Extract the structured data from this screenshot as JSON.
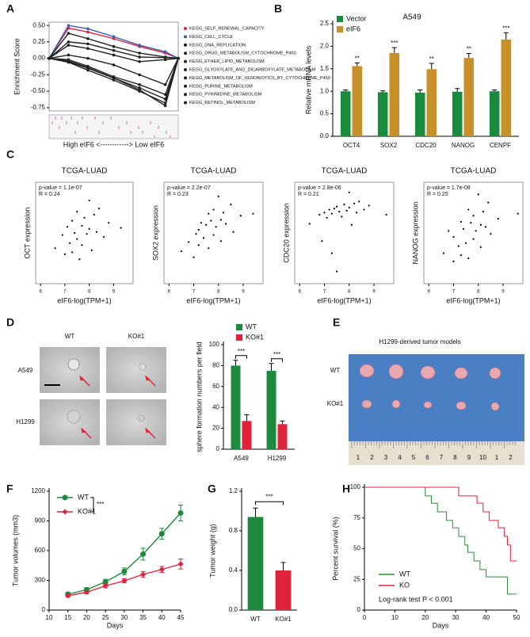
{
  "panel_labels": [
    "A",
    "B",
    "C",
    "D",
    "E",
    "F",
    "G",
    "H"
  ],
  "panel_d_images": {
    "columns": [
      "WT",
      "KO#1"
    ],
    "rows": [
      "A549",
      "H1299"
    ]
  },
  "panel_e_image": {
    "title": "H1299-derived tumor models",
    "rows": [
      "WT",
      "KO#1"
    ],
    "ruler": [
      1,
      2,
      3,
      4,
      5,
      6,
      7,
      8,
      9,
      10,
      1,
      2
    ]
  },
  "chart_data": [
    {
      "type": "line",
      "ylabel": "Enrichment Score",
      "xlabel": "High eIF6 <------------> Low eIF6",
      "box": true,
      "marker": "circle",
      "x": [
        0,
        15,
        30,
        50,
        70,
        90,
        100
      ],
      "xlim": [
        0,
        100
      ],
      "ylim": [
        -0.8,
        0.55
      ],
      "yticks": [
        {
          "value": -0.75,
          "label": "-0.75"
        },
        {
          "value": -0.5,
          "label": "-0.50"
        },
        -0.25,
        {
          "value": 0,
          "label": "0.00"
        },
        0.25,
        {
          "value": 0.5,
          "label": "0.50"
        }
      ],
      "series": [
        {
          "name": "KEGG_SELF_RENEWAL_CAPACITY",
          "color": "#d6204a",
          "values": [
            0,
            0.46,
            0.4,
            0.3,
            0.18,
            0.08,
            0
          ]
        },
        {
          "name": "KEGG_CELL_CYCLE",
          "color": "#3a5fa8",
          "values": [
            0,
            0.5,
            0.45,
            0.33,
            0.2,
            0.1,
            0
          ]
        },
        {
          "name": "KEGG_DNA_REPLICATION",
          "color": "#222222",
          "values": [
            0,
            0.38,
            0.3,
            0.18,
            0.08,
            0.02,
            0
          ]
        },
        {
          "name": "KEGG_DRUG_METABOLISM_CYTOCHROME_P450",
          "color": "#222222",
          "values": [
            0,
            -0.05,
            -0.15,
            -0.3,
            -0.45,
            -0.62,
            0
          ]
        },
        {
          "name": "KEGG_ETHER_LIPID_METABOLISM",
          "color": "#222222",
          "values": [
            0,
            0.05,
            0,
            -0.1,
            -0.25,
            -0.4,
            0
          ]
        },
        {
          "name": "KEGG_GLYOXYLATE_AND_DICARBOXYLATE_METABOLISM",
          "color": "#222222",
          "values": [
            0,
            -0.02,
            -0.12,
            -0.28,
            -0.4,
            -0.55,
            0
          ]
        },
        {
          "name": "KEGG_METABOLISM_OF_XENOBIOTICS_BY_CYTOCHROME_P450",
          "color": "#222222",
          "values": [
            0,
            -0.06,
            -0.18,
            -0.33,
            -0.5,
            -0.68,
            0
          ]
        },
        {
          "name": "KEGG_PURINE_METABOLISM",
          "color": "#222222",
          "values": [
            0,
            0.2,
            0.15,
            0.05,
            -0.05,
            -0.02,
            0
          ]
        },
        {
          "name": "KEGG_PYRIMIDINE_METABOLISM",
          "color": "#222222",
          "values": [
            0,
            0.25,
            0.22,
            0.12,
            0.02,
            0.01,
            0
          ]
        },
        {
          "name": "KEGG_RETINOL_METABOLISM",
          "color": "#222222",
          "values": [
            0,
            -0.04,
            -0.14,
            -0.3,
            -0.48,
            -0.72,
            0
          ]
        }
      ]
    },
    {
      "type": "bar",
      "title": "A549",
      "ylabel": "Relative mRNA levels",
      "categories": [
        "OCT4",
        "SOX2",
        "CDC20",
        "NANOG",
        "CENPF"
      ],
      "ylim": [
        0,
        2.5
      ],
      "yticks": [
        {
          "value": 0,
          "label": "0.0"
        },
        0.5,
        {
          "value": 1,
          "label": "1.0"
        },
        1.5,
        {
          "value": 2,
          "label": "2.0"
        },
        2.5
      ],
      "series": [
        {
          "name": "Vector",
          "color": "#1a8a3c",
          "values": [
            1.0,
            0.98,
            0.97,
            0.99,
            1.0
          ],
          "errors": [
            0.03,
            0.03,
            0.06,
            0.07,
            0.03
          ]
        },
        {
          "name": "eIF6",
          "color": "#c8902a",
          "values": [
            1.56,
            1.85,
            1.49,
            1.74,
            2.15
          ],
          "errors": [
            0.07,
            0.12,
            0.13,
            0.1,
            0.15
          ]
        }
      ],
      "significance": [
        "**",
        "***",
        "**",
        "**",
        "***"
      ]
    },
    {
      "type": "scatter",
      "title": "TCGA-LUAD",
      "ylabel": "OCT expression",
      "xlabel": "eIF6-log(TPM+1)",
      "box": true,
      "p_value": "p-value = 1.1e-07",
      "r": "R = 0.24",
      "xlim": [
        5.8,
        9.8
      ],
      "xticks": [
        6,
        7,
        8,
        9
      ],
      "ylim": [
        0,
        10
      ],
      "x": [
        6.6,
        6.9,
        7.0,
        7.1,
        7.2,
        7.3,
        7.3,
        7.4,
        7.5,
        7.5,
        7.6,
        7.7,
        7.7,
        7.8,
        7.9,
        8.0,
        8.0,
        8.1,
        8.2,
        8.3,
        8.4,
        8.6,
        8.8,
        9.3
      ],
      "values": [
        3.5,
        4.8,
        2.9,
        5.6,
        4.0,
        6.2,
        3.1,
        5.0,
        4.4,
        7.1,
        2.4,
        5.7,
        3.8,
        6.5,
        4.9,
        8.2,
        5.4,
        3.3,
        6.8,
        5.1,
        7.4,
        4.6,
        6.0,
        5.5
      ]
    },
    {
      "type": "scatter",
      "title": "TCGA-LUAD",
      "ylabel": "SOX2 expression",
      "xlabel": "eIF6-log(TPM+1)",
      "box": true,
      "p_value": "p-value = 2.2e-07",
      "r": "R = 0.23",
      "xlim": [
        5.8,
        9.8
      ],
      "xticks": [
        6,
        7,
        8,
        9
      ],
      "ylim": [
        0,
        10
      ],
      "x": [
        6.5,
        6.8,
        7.0,
        7.1,
        7.2,
        7.2,
        7.3,
        7.4,
        7.5,
        7.6,
        7.6,
        7.7,
        7.8,
        7.8,
        7.9,
        8.0,
        8.1,
        8.1,
        8.2,
        8.3,
        8.5,
        8.6,
        8.9,
        9.4
      ],
      "values": [
        3.2,
        4.1,
        2.6,
        4.9,
        5.3,
        3.8,
        6.0,
        4.5,
        5.8,
        6.9,
        3.5,
        6.2,
        4.8,
        7.3,
        5.6,
        8.6,
        6.3,
        4.2,
        7.0,
        5.9,
        7.8,
        5.1,
        6.7,
        6.9
      ]
    },
    {
      "type": "scatter",
      "title": "TCGA-LUAD",
      "ylabel": "CDC20 expression",
      "xlabel": "eIF6-log(TPM+1)",
      "box": true,
      "p_value": "p-value = 2.8e-06",
      "r": "R = 0.21",
      "xlim": [
        5.8,
        9.8
      ],
      "xticks": [
        6,
        7,
        8,
        9
      ],
      "ylim": [
        0,
        10
      ],
      "x": [
        6.4,
        6.8,
        6.9,
        7.0,
        7.1,
        7.2,
        7.3,
        7.3,
        7.4,
        7.5,
        7.5,
        7.6,
        7.7,
        7.8,
        7.9,
        8.0,
        8.0,
        8.1,
        8.2,
        8.3,
        8.4,
        8.6,
        8.8,
        9.5
      ],
      "values": [
        5.9,
        6.8,
        4.2,
        7.0,
        6.5,
        7.3,
        3.0,
        6.9,
        7.4,
        7.6,
        1.2,
        7.1,
        6.6,
        7.8,
        7.2,
        9.0,
        7.5,
        5.8,
        7.9,
        7.0,
        8.1,
        7.3,
        7.7,
        6.8
      ]
    },
    {
      "type": "scatter",
      "title": "TCGA-LUAD",
      "ylabel": "NANOG expression",
      "xlabel": "eIF6-log(TPM+1)",
      "box": true,
      "p_value": "p-value = 1.7e-08",
      "r": "R = 0.25",
      "xlim": [
        5.8,
        9.8
      ],
      "xticks": [
        6,
        7,
        8,
        9
      ],
      "ylim": [
        0,
        10
      ],
      "x": [
        6.6,
        6.8,
        7.0,
        7.0,
        7.2,
        7.3,
        7.3,
        7.4,
        7.5,
        7.6,
        7.6,
        7.7,
        7.8,
        7.8,
        7.9,
        8.0,
        8.1,
        8.1,
        8.2,
        8.3,
        8.4,
        8.5,
        8.8,
        9.6
      ],
      "values": [
        3.0,
        5.2,
        2.2,
        4.6,
        3.7,
        6.1,
        2.8,
        5.4,
        4.0,
        7.3,
        2.5,
        6.0,
        4.4,
        6.7,
        5.2,
        8.8,
        5.8,
        3.6,
        7.1,
        5.6,
        8.0,
        4.9,
        6.4,
        6.9
      ]
    },
    {
      "type": "bar",
      "ylabel": "sphere formation numbers per field",
      "categories": [
        "A549",
        "H1299"
      ],
      "ylim": [
        0,
        100
      ],
      "yticks": [
        0,
        20,
        40,
        60,
        80,
        100
      ],
      "series": [
        {
          "name": "WT",
          "color": "#1e8a3e",
          "values": [
            80,
            75
          ],
          "errors": [
            5,
            7
          ]
        },
        {
          "name": "KO#1",
          "color": "#e0233a",
          "values": [
            27,
            24
          ],
          "errors": [
            6,
            3
          ]
        }
      ],
      "significance": [
        "***",
        "***"
      ]
    },
    {
      "type": "line",
      "xlabel": "Days",
      "ylabel": "Tumor volumes (mm3)",
      "x": [
        15,
        20,
        25,
        30,
        35,
        40,
        45
      ],
      "xlim": [
        10,
        45
      ],
      "xticks": [
        10,
        15,
        20,
        25,
        30,
        35,
        40,
        45
      ],
      "ylim": [
        0,
        1200
      ],
      "yticks": [
        0,
        300,
        600,
        900,
        1200
      ],
      "significance": "***",
      "series": [
        {
          "name": "WT",
          "color": "#1e8a3e",
          "marker": "circle",
          "values": [
            160,
            205,
            285,
            390,
            565,
            770,
            980
          ],
          "errors": [
            20,
            20,
            25,
            35,
            60,
            55,
            80
          ]
        },
        {
          "name": "KO#1",
          "color": "#e0233a",
          "marker": "diamond",
          "values": [
            145,
            180,
            245,
            295,
            360,
            410,
            465
          ],
          "errors": [
            15,
            15,
            20,
            20,
            30,
            30,
            50
          ]
        }
      ]
    },
    {
      "type": "bar",
      "ylabel": "Tumor weight (g)",
      "categories": [
        "WT",
        "KO#1"
      ],
      "ylim": [
        0,
        1.2
      ],
      "yticks": [
        {
          "value": 0,
          "label": "0.0"
        },
        0.4,
        0.8,
        1.2
      ],
      "values": [
        0.94,
        0.4
      ],
      "errors": [
        0.09,
        0.08
      ],
      "colors": [
        "#1e8a3e",
        "#e0233a"
      ],
      "significance": "***"
    },
    {
      "type": "line",
      "step": true,
      "xlabel": "Days",
      "ylabel": "Percent survival (%)",
      "xlim": [
        0,
        50
      ],
      "xticks": [
        0,
        10,
        20,
        30,
        40,
        50
      ],
      "ylim": [
        0,
        100
      ],
      "yticks": [
        0,
        25,
        50,
        75,
        100
      ],
      "annotation": "Log-rank test P < 0.001",
      "series": [
        {
          "name": "WT",
          "color": "#2e8b3e",
          "x": [
            0,
            18,
            20,
            22,
            24,
            27,
            29,
            31,
            33,
            34,
            36,
            38,
            40,
            43,
            47,
            50
          ],
          "values": [
            100,
            100,
            93,
            87,
            80,
            73,
            67,
            60,
            53,
            47,
            40,
            33,
            27,
            27,
            13,
            13
          ]
        },
        {
          "name": "KO",
          "color": "#e0233a",
          "x": [
            0,
            29,
            31,
            37,
            39,
            41,
            44,
            46,
            47,
            48,
            50
          ],
          "values": [
            100,
            100,
            93,
            87,
            80,
            73,
            67,
            60,
            53,
            40,
            40
          ]
        }
      ]
    }
  ]
}
